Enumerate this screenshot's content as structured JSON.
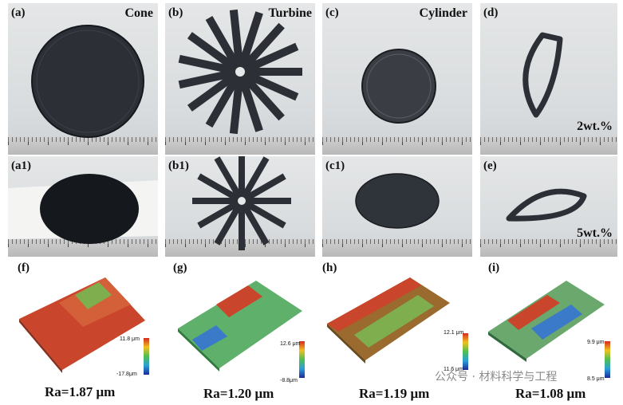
{
  "row1": {
    "a": {
      "label": "(a)",
      "title": "Cone"
    },
    "b": {
      "label": "(b)",
      "title": "Turbine"
    },
    "c": {
      "label": "(c)",
      "title": "Cylinder"
    },
    "d": {
      "label": "(d)",
      "note": "2wt.%"
    }
  },
  "row2": {
    "a1": {
      "label": "(a1)"
    },
    "b1": {
      "label": "(b1)"
    },
    "c1": {
      "label": "(c1)"
    },
    "e": {
      "label": "(e)",
      "note": "5wt.%"
    }
  },
  "row3": {
    "f": {
      "label": "(f)",
      "max": "11.8 μm",
      "min": "-17.8μm",
      "ra": "Ra=1.87 μm"
    },
    "g": {
      "label": "(g)",
      "max": "12.6 μm",
      "min": "-8.8μm",
      "ra": "Ra=1.20 μm"
    },
    "h": {
      "label": "(h)",
      "max": "12.1 μm",
      "min": "11.6 μm",
      "ra": "Ra=1.19 μm"
    },
    "i": {
      "label": "(i)",
      "max": "9.9 μm",
      "min": "8.5 μm",
      "ra": "Ra=1.08 μm"
    }
  },
  "watermark": "公众号 · 材料科学与工程",
  "colors": {
    "object": "#2b2f36",
    "red_surface": "#c9452b",
    "green_surface": "#5fb06a"
  }
}
